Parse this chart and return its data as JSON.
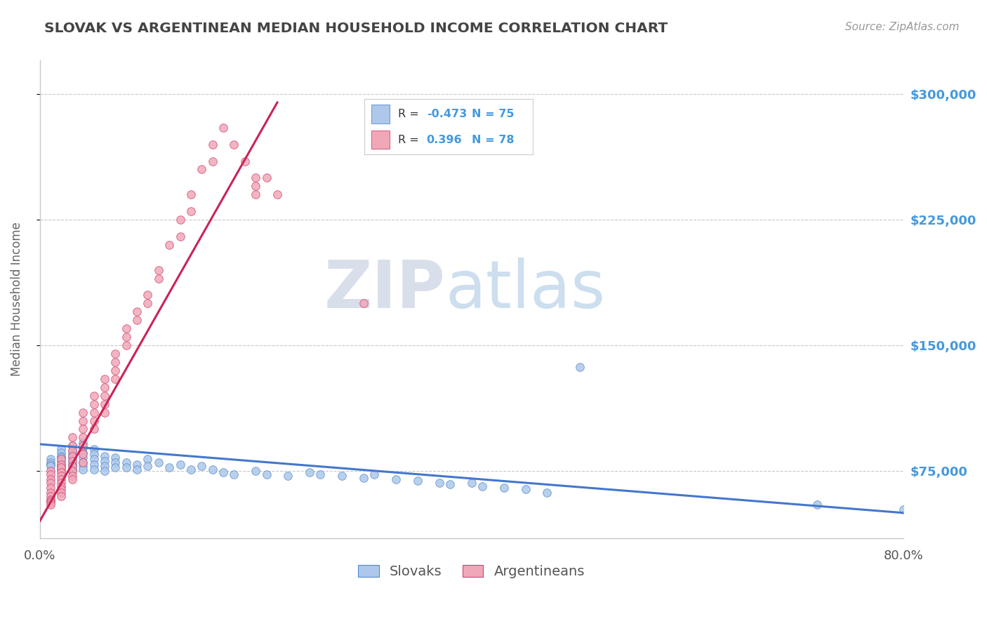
{
  "title": "SLOVAK VS ARGENTINEAN MEDIAN HOUSEHOLD INCOME CORRELATION CHART",
  "source": "Source: ZipAtlas.com",
  "ylabel": "Median Household Income",
  "xlim": [
    0.0,
    0.8
  ],
  "ylim": [
    35000,
    320000
  ],
  "yticks": [
    75000,
    150000,
    225000,
    300000
  ],
  "ytick_labels": [
    "$75,000",
    "$150,000",
    "$225,000",
    "$300,000"
  ],
  "xticks": [
    0.0,
    0.1,
    0.2,
    0.3,
    0.4,
    0.5,
    0.6,
    0.7,
    0.8
  ],
  "xtick_labels": [
    "0.0%",
    "",
    "",
    "",
    "",
    "",
    "",
    "",
    "80.0%"
  ],
  "legend_r_slovak": "-0.473",
  "legend_n_slovak": "75",
  "legend_r_argentinean": "0.396",
  "legend_n_argentinean": "78",
  "slovak_fill": "#adc8ea",
  "argentinean_fill": "#f0a8b8",
  "slovak_edge": "#5588cc",
  "argentinean_edge": "#d04070",
  "slovak_line_color": "#4477cc",
  "argentinean_line_color": "#cc2255",
  "watermark_zip": "ZIP",
  "watermark_atlas": "atlas",
  "background_color": "#ffffff",
  "grid_color": "#c8c8c8",
  "title_color": "#444444",
  "axis_label_color": "#666666",
  "right_tick_color": "#4499dd",
  "legend_text_color": "#333333",
  "source_color": "#999999",
  "slovak_x": [
    0.01,
    0.01,
    0.01,
    0.01,
    0.02,
    0.02,
    0.02,
    0.02,
    0.02,
    0.02,
    0.02,
    0.02,
    0.02,
    0.03,
    0.03,
    0.03,
    0.03,
    0.03,
    0.03,
    0.03,
    0.03,
    0.03,
    0.04,
    0.04,
    0.04,
    0.04,
    0.04,
    0.04,
    0.04,
    0.05,
    0.05,
    0.05,
    0.05,
    0.05,
    0.06,
    0.06,
    0.06,
    0.06,
    0.07,
    0.07,
    0.07,
    0.08,
    0.08,
    0.09,
    0.09,
    0.1,
    0.1,
    0.11,
    0.12,
    0.13,
    0.14,
    0.15,
    0.16,
    0.17,
    0.18,
    0.2,
    0.21,
    0.23,
    0.25,
    0.26,
    0.28,
    0.3,
    0.31,
    0.33,
    0.35,
    0.37,
    0.38,
    0.4,
    0.41,
    0.43,
    0.45,
    0.47,
    0.5,
    0.72,
    0.8
  ],
  "slovak_y": [
    82000,
    80000,
    79000,
    78000,
    88000,
    86000,
    84000,
    83000,
    81000,
    79000,
    78000,
    77000,
    76000,
    90000,
    87000,
    85000,
    83000,
    81000,
    79000,
    78000,
    76000,
    75000,
    92000,
    89000,
    86000,
    83000,
    80000,
    78000,
    76000,
    88000,
    85000,
    82000,
    79000,
    76000,
    84000,
    81000,
    78000,
    75000,
    83000,
    80000,
    77000,
    80000,
    77000,
    79000,
    76000,
    82000,
    78000,
    80000,
    77000,
    79000,
    76000,
    78000,
    76000,
    74000,
    73000,
    75000,
    73000,
    72000,
    74000,
    73000,
    72000,
    71000,
    73000,
    70000,
    69000,
    68000,
    67000,
    68000,
    66000,
    65000,
    64000,
    62000,
    137000,
    55000,
    52000
  ],
  "argentinean_x": [
    0.01,
    0.01,
    0.01,
    0.01,
    0.01,
    0.01,
    0.01,
    0.01,
    0.01,
    0.01,
    0.01,
    0.02,
    0.02,
    0.02,
    0.02,
    0.02,
    0.02,
    0.02,
    0.02,
    0.02,
    0.02,
    0.02,
    0.03,
    0.03,
    0.03,
    0.03,
    0.03,
    0.03,
    0.03,
    0.03,
    0.03,
    0.04,
    0.04,
    0.04,
    0.04,
    0.04,
    0.04,
    0.04,
    0.05,
    0.05,
    0.05,
    0.05,
    0.05,
    0.06,
    0.06,
    0.06,
    0.06,
    0.06,
    0.07,
    0.07,
    0.07,
    0.07,
    0.08,
    0.08,
    0.08,
    0.09,
    0.09,
    0.1,
    0.1,
    0.11,
    0.11,
    0.12,
    0.13,
    0.13,
    0.14,
    0.14,
    0.15,
    0.16,
    0.16,
    0.17,
    0.18,
    0.19,
    0.2,
    0.2,
    0.2,
    0.21,
    0.22,
    0.3
  ],
  "argentinean_y": [
    75000,
    73000,
    70000,
    68000,
    65000,
    62000,
    60000,
    58000,
    57000,
    56000,
    55000,
    82000,
    79000,
    77000,
    74000,
    72000,
    70000,
    68000,
    66000,
    64000,
    62000,
    60000,
    95000,
    90000,
    87000,
    84000,
    81000,
    78000,
    75000,
    72000,
    70000,
    110000,
    105000,
    100000,
    95000,
    90000,
    85000,
    80000,
    120000,
    115000,
    110000,
    105000,
    100000,
    130000,
    125000,
    120000,
    115000,
    110000,
    145000,
    140000,
    135000,
    130000,
    160000,
    155000,
    150000,
    170000,
    165000,
    180000,
    175000,
    195000,
    190000,
    210000,
    225000,
    215000,
    240000,
    230000,
    255000,
    270000,
    260000,
    280000,
    270000,
    260000,
    250000,
    245000,
    240000,
    250000,
    240000,
    175000
  ],
  "slovak_trend_x": [
    0.0,
    0.8
  ],
  "slovak_trend_y": [
    91000,
    50000
  ],
  "argentinean_trend_x": [
    0.0,
    0.22
  ],
  "argentinean_trend_y": [
    45000,
    295000
  ]
}
